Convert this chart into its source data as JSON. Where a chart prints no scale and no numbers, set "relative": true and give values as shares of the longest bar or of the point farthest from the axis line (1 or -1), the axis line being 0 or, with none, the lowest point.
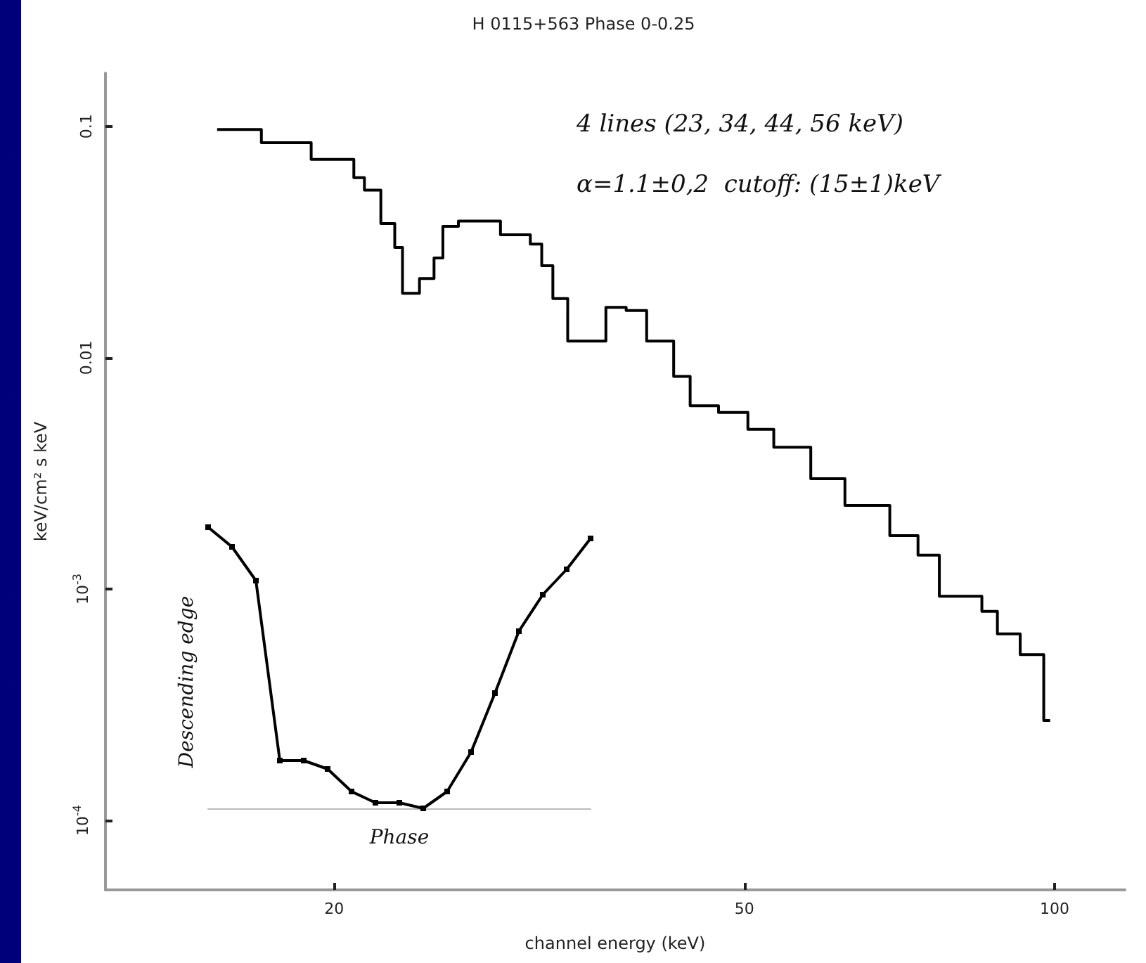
{
  "chart_data": [
    {
      "type": "step",
      "title": "H 0115+563 Phase 0-0.25",
      "xlabel": "channel energy (keV)",
      "ylabel": "keV/cm² s keV",
      "x": [
        15.4,
        17.0,
        19.0,
        20.9,
        21.4,
        22.2,
        22.9,
        23.3,
        24.2,
        25.0,
        25.5,
        26.4,
        27.3,
        29.0,
        31.0,
        31.8,
        32.6,
        33.7,
        34.7,
        36.7,
        38.4,
        40.2,
        42.7,
        44.3,
        47.2,
        50.4,
        53.4,
        58.0,
        62.6,
        69.2,
        73.7,
        77.3,
        85.0,
        88.0,
        92.6,
        97.6,
        99.0
      ],
      "values": [
        0.097,
        0.085,
        0.072,
        0.06,
        0.053,
        0.038,
        0.03,
        0.019,
        0.022,
        0.027,
        0.037,
        0.039,
        0.039,
        0.034,
        0.031,
        0.025,
        0.018,
        0.0118,
        0.0118,
        0.0165,
        0.016,
        0.0118,
        0.0083,
        0.0062,
        0.0058,
        0.0049,
        0.0041,
        0.003,
        0.0023,
        0.0017,
        0.0014,
        0.00093,
        0.0008,
        0.00064,
        0.00052,
        0.00027,
        0.00027
      ],
      "color": "#000000",
      "log": "xy",
      "xlim": [
        12,
        117
      ],
      "ylim": [
        5e-05,
        0.17
      ],
      "xticks": [
        20,
        50,
        100
      ],
      "yticks": [
        0.1,
        0.01,
        {
          "value": 0.001,
          "label": "10$^{-3}$"
        },
        {
          "value": 0.0001,
          "label": "10$^{-4}$"
        }
      ],
      "grid": false,
      "annotations": [
        "4 lines (23, 34, 44, 56 keV)",
        "α=1.1±0,2  cutoff: (15±1)keV"
      ]
    },
    {
      "type": "line",
      "relative": true,
      "xlabel": "Phase",
      "ylabel": "Descending edge",
      "categories": [
        null,
        null,
        null,
        null,
        null,
        null,
        null,
        null,
        null,
        null,
        null,
        null,
        null,
        null,
        null,
        null,
        null
      ],
      "values": [
        1,
        0.93,
        0.81,
        0.17,
        0.17,
        0.14,
        0.06,
        0.02,
        0.02,
        0,
        0.06,
        0.2,
        0.41,
        0.63,
        0.76,
        0.85,
        0.96
      ],
      "color": "#000000",
      "grid": false,
      "marker": "square"
    }
  ]
}
